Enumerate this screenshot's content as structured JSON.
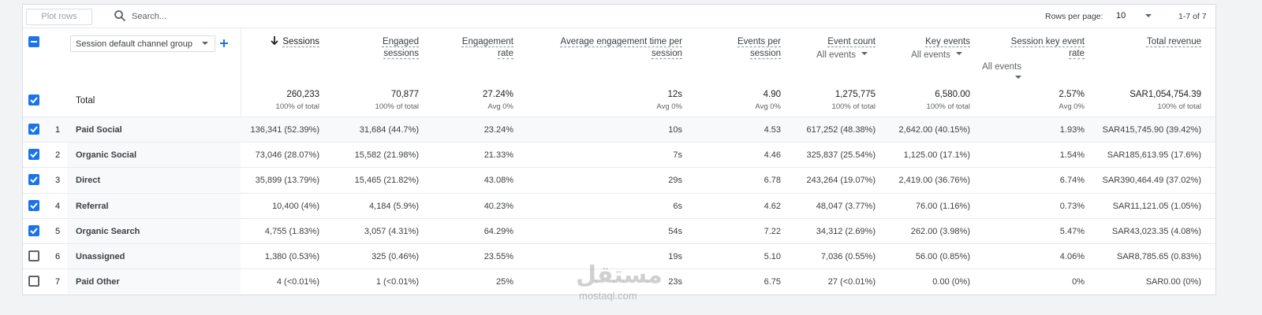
{
  "toolbar": {
    "plot_rows": "Plot rows",
    "search_placeholder": "Search...",
    "rows_per_page_label": "Rows per page:",
    "rows_per_page": "10",
    "pagination": "1-7 of 7"
  },
  "table": {
    "dimension": "Session default channel group",
    "columns": [
      {
        "label": "Sessions"
      },
      {
        "label": "Engaged sessions"
      },
      {
        "label": "Engagement rate"
      },
      {
        "label": "Average engagement time per session"
      },
      {
        "label": "Events per session"
      },
      {
        "label": "Event count",
        "filter": "All events"
      },
      {
        "label": "Key events",
        "filter": "All events"
      },
      {
        "label": "Session key event rate",
        "filter": "All events"
      },
      {
        "label": "Total revenue"
      }
    ],
    "total": {
      "label": "Total",
      "checked": true,
      "values": [
        "260,233",
        "70,877",
        "27.24%",
        "12s",
        "4.90",
        "1,275,775",
        "6,580.00",
        "2.57%",
        "SAR1,054,754.39"
      ],
      "notes": [
        "100% of total",
        "100% of total",
        "Avg 0%",
        "Avg 0%",
        "Avg 0%",
        "100% of total",
        "100% of total",
        "Avg 0%",
        "100% of total"
      ]
    },
    "rows": [
      {
        "index": 1,
        "name": "Paid Social",
        "checked": true,
        "cells": [
          "136,341 (52.39%)",
          "31,684 (44.7%)",
          "23.24%",
          "10s",
          "4.53",
          "617,252 (48.38%)",
          "2,642.00 (40.15%)",
          "1.93%",
          "SAR415,745.90 (39.42%)"
        ]
      },
      {
        "index": 2,
        "name": "Organic Social",
        "checked": true,
        "cells": [
          "73,046 (28.07%)",
          "15,582 (21.98%)",
          "21.33%",
          "7s",
          "4.46",
          "325,837 (25.54%)",
          "1,125.00 (17.1%)",
          "1.54%",
          "SAR185,613.95 (17.6%)"
        ]
      },
      {
        "index": 3,
        "name": "Direct",
        "checked": true,
        "cells": [
          "35,899 (13.79%)",
          "15,465 (21.82%)",
          "43.08%",
          "29s",
          "6.78",
          "243,264 (19.07%)",
          "2,419.00 (36.76%)",
          "6.74%",
          "SAR390,464.49 (37.02%)"
        ]
      },
      {
        "index": 4,
        "name": "Referral",
        "checked": true,
        "cells": [
          "10,400 (4%)",
          "4,184 (5.9%)",
          "40.23%",
          "6s",
          "4.62",
          "48,047 (3.77%)",
          "76.00 (1.16%)",
          "0.73%",
          "SAR11,121.05 (1.05%)"
        ]
      },
      {
        "index": 5,
        "name": "Organic Search",
        "checked": true,
        "cells": [
          "4,755 (1.83%)",
          "3,057 (4.31%)",
          "64.29%",
          "54s",
          "7.22",
          "34,312 (2.69%)",
          "262.00 (3.98%)",
          "5.47%",
          "SAR43,023.35 (4.08%)"
        ]
      },
      {
        "index": 6,
        "name": "Unassigned",
        "checked": false,
        "cells": [
          "1,380 (0.53%)",
          "325 (0.46%)",
          "23.55%",
          "19s",
          "5.10",
          "7,036 (0.55%)",
          "56.00 (0.85%)",
          "4.06%",
          "SAR8,785.65 (0.83%)"
        ]
      },
      {
        "index": 7,
        "name": "Paid Other",
        "checked": false,
        "cells": [
          "4 (<0.01%)",
          "1 (<0.01%)",
          "25%",
          "23s",
          "6.75",
          "27 (<0.01%)",
          "0.00 (0%)",
          "0%",
          "SAR0.00 (0%)"
        ]
      }
    ]
  },
  "watermark": {
    "arabic": "مستقل",
    "latin": "mostaql.com"
  }
}
